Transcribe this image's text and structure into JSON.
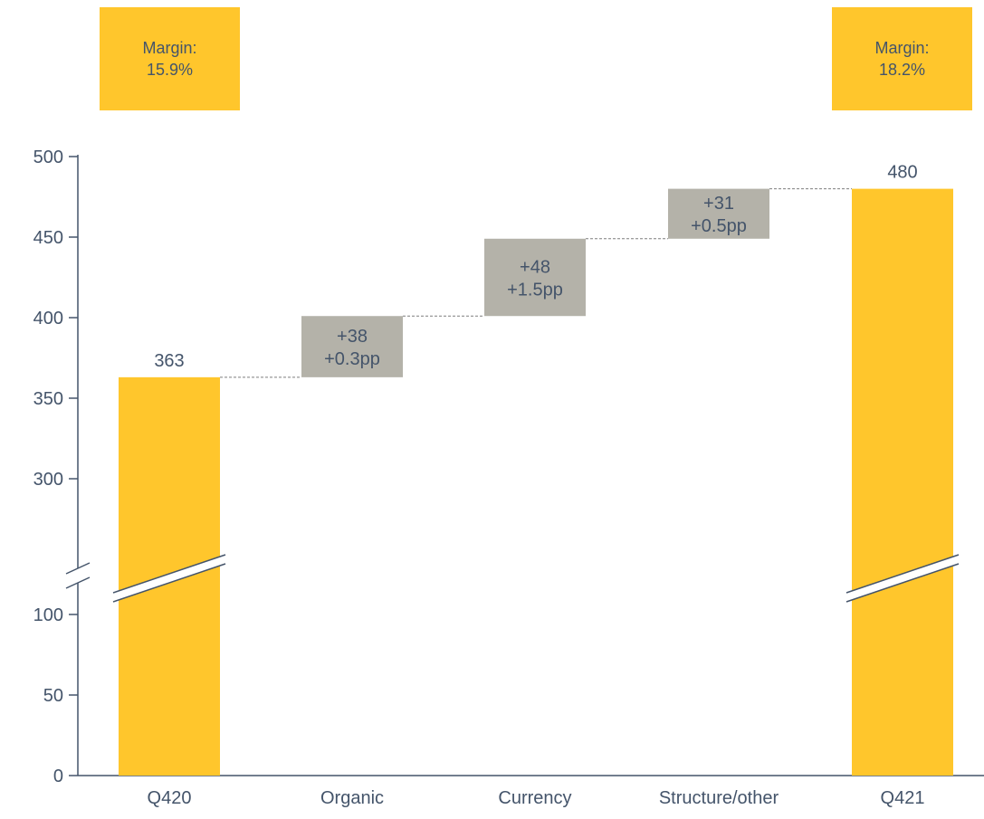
{
  "margin_boxes": {
    "left": {
      "title": "Margin:",
      "value": "15.9%"
    },
    "right": {
      "title": "Margin:",
      "value": "18.2%"
    }
  },
  "chart_data": {
    "type": "bar",
    "subtype": "waterfall",
    "categories": [
      "Q420",
      "Organic",
      "Currency",
      "Structure/other",
      "Q421"
    ],
    "bars": [
      {
        "category": "Q420",
        "kind": "total",
        "start": 0,
        "end": 363,
        "label": "363"
      },
      {
        "category": "Organic",
        "kind": "delta",
        "start": 363,
        "end": 401,
        "label": "+38",
        "sublabel": "+0.3pp"
      },
      {
        "category": "Currency",
        "kind": "delta",
        "start": 401,
        "end": 449,
        "label": "+48",
        "sublabel": "+1.5pp"
      },
      {
        "category": "Structure/other",
        "kind": "delta",
        "start": 449,
        "end": 480,
        "label": "+31",
        "sublabel": "+0.5pp"
      },
      {
        "category": "Q421",
        "kind": "total",
        "start": 0,
        "end": 480,
        "label": "480"
      }
    ],
    "y_ticks_upper": [
      300,
      350,
      400,
      450,
      500
    ],
    "y_ticks_lower": [
      0,
      50,
      100
    ],
    "y_axis_break": true,
    "ylim": [
      0,
      500
    ],
    "colors": {
      "total": "#FFC62C",
      "delta": "#B4B2A9",
      "axis": "#44546A",
      "connector": "#7F7F7F"
    }
  }
}
